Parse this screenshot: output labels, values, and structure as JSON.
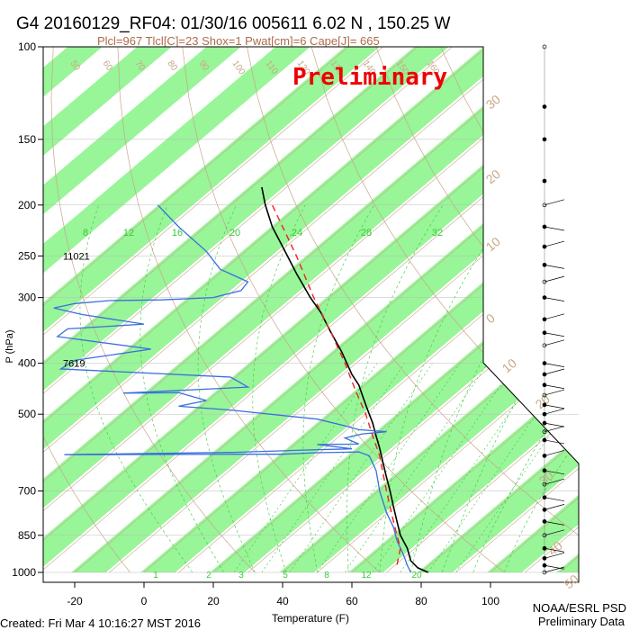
{
  "header": {
    "title": "G4 20160129_RF04: 01/30/16 005611    6.02 N , 150.25 W",
    "subtitle": "Plcl=967 Tlcl[C]=23 Shox=1 Pwat[cm]=6 Cape[J]= 665",
    "stamp": "Preliminary"
  },
  "footer": {
    "created": "Created: Fri Mar  4 10:16:27 MST 2016",
    "credit_line1": "NOAA/ESRL PSD",
    "credit_line2": "Preliminary Data"
  },
  "colors": {
    "green_band": "#98f598",
    "isotherm": "#c8a888",
    "dry_adiabat": "#c9a58a",
    "moist_adiabat": "#33cc33",
    "mixing_ratio": "#33cc33",
    "temperature": "#000000",
    "dewpoint": "#3a6fe0",
    "parcel": "#ee2222",
    "stamp": "#ee0000",
    "subtitle": "#b06a4a"
  },
  "chart_data": {
    "type": "line",
    "diagram": "skew-T log-P",
    "xlabel": "Temperature (F)",
    "ylabel": "P (hPa)",
    "x_ticks": [
      -20,
      0,
      20,
      40,
      60,
      80,
      100
    ],
    "x_range_F": [
      -28,
      126
    ],
    "y_ticks": [
      100,
      150,
      200,
      250,
      300,
      400,
      500,
      700,
      850,
      1000
    ],
    "y_range_hPa": [
      100,
      1000
    ],
    "height_labels": [
      {
        "p": 250,
        "text": "11021"
      },
      {
        "p": 400,
        "text": "7619"
      }
    ],
    "isotherm_labels_F": [
      "50",
      "60",
      "70",
      "80",
      "90",
      "100",
      "110",
      "120",
      "130",
      "140",
      "150",
      "160"
    ],
    "right_temp_labels": [
      "30",
      "20",
      "10",
      "0",
      "10",
      "20",
      "30",
      "40",
      "50"
    ],
    "mixing_ratio_labels": [
      "8",
      "12",
      "16",
      "20",
      "24",
      "28",
      "32"
    ],
    "moist_labels": [
      "1",
      "2",
      "3",
      "5",
      "8",
      "12",
      "20"
    ],
    "series": [
      {
        "name": "temperature",
        "points": [
          [
            82,
            1000
          ],
          [
            79,
            980
          ],
          [
            77,
            950
          ],
          [
            76,
            900
          ],
          [
            74,
            850
          ],
          [
            73,
            800
          ],
          [
            72,
            750
          ],
          [
            71,
            700
          ],
          [
            70,
            660
          ],
          [
            69,
            620
          ],
          [
            68,
            580
          ],
          [
            67,
            550
          ],
          [
            66,
            520
          ],
          [
            64,
            480
          ],
          [
            63,
            460
          ],
          [
            62,
            440
          ],
          [
            60,
            420
          ],
          [
            57,
            380
          ],
          [
            54,
            350
          ],
          [
            51,
            320
          ],
          [
            48,
            300
          ],
          [
            44,
            270
          ],
          [
            40,
            240
          ],
          [
            37,
            220
          ],
          [
            35,
            200
          ],
          [
            34,
            185
          ]
        ]
      },
      {
        "name": "dewpoint",
        "points": [
          [
            77,
            1000
          ],
          [
            76,
            970
          ],
          [
            75,
            930
          ],
          [
            73,
            870
          ],
          [
            72,
            820
          ],
          [
            70,
            770
          ],
          [
            68,
            700
          ],
          [
            67,
            640
          ],
          [
            65,
            600
          ],
          [
            62,
            590
          ],
          [
            50,
            592
          ],
          [
            40,
            596
          ],
          [
            26,
            596
          ],
          [
            -23,
            597
          ],
          [
            26,
            591
          ],
          [
            47,
            585
          ],
          [
            60,
            582
          ],
          [
            50,
            571
          ],
          [
            62,
            570
          ],
          [
            58,
            555
          ],
          [
            63,
            545
          ],
          [
            70,
            540
          ],
          [
            62,
            535
          ],
          [
            58,
            526
          ],
          [
            50,
            511
          ],
          [
            25,
            491
          ],
          [
            10,
            483
          ],
          [
            18,
            471
          ],
          [
            10,
            455
          ],
          [
            -6,
            456
          ],
          [
            30,
            444
          ],
          [
            25,
            425
          ],
          [
            -24,
            410
          ],
          [
            -20,
            395
          ],
          [
            2,
            376
          ],
          [
            -25,
            356
          ],
          [
            -22,
            344
          ],
          [
            0,
            337
          ],
          [
            -18,
            323
          ],
          [
            -26,
            314
          ],
          [
            -20,
            308
          ],
          [
            -10,
            304
          ],
          [
            5,
            303
          ],
          [
            20,
            300
          ],
          [
            28,
            291
          ],
          [
            30,
            280
          ],
          [
            22,
            265
          ],
          [
            18,
            245
          ],
          [
            10,
            220
          ],
          [
            4,
            200
          ]
        ]
      },
      {
        "name": "parcel",
        "points": [
          [
            73,
            967
          ],
          [
            74,
            900
          ],
          [
            73,
            850
          ],
          [
            72,
            800
          ],
          [
            71,
            750
          ],
          [
            70,
            700
          ],
          [
            69,
            650
          ],
          [
            68,
            600
          ],
          [
            66,
            550
          ],
          [
            64,
            500
          ],
          [
            61,
            450
          ],
          [
            58,
            400
          ],
          [
            54,
            350
          ],
          [
            49,
            300
          ],
          [
            44,
            250
          ],
          [
            40,
            220
          ],
          [
            37,
            200
          ]
        ]
      }
    ],
    "wind_profile": {
      "units": "barbs (kt)",
      "levels_hPa": [
        100,
        130,
        150,
        180,
        200,
        220,
        240,
        260,
        280,
        300,
        330,
        350,
        370,
        400,
        420,
        440,
        460,
        480,
        500,
        520,
        540,
        560,
        600,
        640,
        680,
        720,
        760,
        800,
        850,
        900,
        940,
        970,
        1000
      ]
    }
  }
}
